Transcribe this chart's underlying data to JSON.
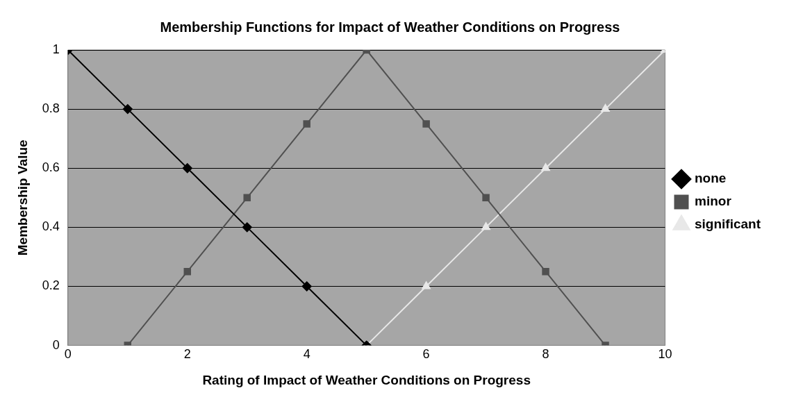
{
  "chart_data": {
    "type": "line",
    "title": "Membership Functions for Impact of Weather Conditions on Progress",
    "xlabel": "Rating of Impact of Weather Conditions on Progress",
    "ylabel": "Membership Value",
    "series": [
      {
        "name": "none",
        "color": "#000000",
        "marker": "diamond",
        "x": [
          0,
          1,
          2,
          3,
          4,
          5
        ],
        "values": [
          1,
          0.8,
          0.6,
          0.4,
          0.2,
          0
        ]
      },
      {
        "name": "minor",
        "color": "#505050",
        "marker": "square",
        "x": [
          1,
          2,
          3,
          4,
          5,
          6,
          7,
          8,
          9
        ],
        "values": [
          0,
          0.25,
          0.5,
          0.75,
          1,
          0.75,
          0.5,
          0.25,
          0
        ]
      },
      {
        "name": "significant",
        "color": "#e8e8e8",
        "marker": "triangle",
        "x": [
          5,
          6,
          7,
          8,
          9,
          10
        ],
        "values": [
          0,
          0.2,
          0.4,
          0.6,
          0.8,
          1
        ]
      }
    ],
    "xlim": [
      0,
      10
    ],
    "xticks": [
      0,
      2,
      4,
      6,
      8,
      10
    ],
    "ylim": [
      0,
      1
    ],
    "yticks": [
      0,
      0.2,
      0.4,
      0.6,
      0.8,
      1
    ],
    "grid": "y",
    "legend": "right",
    "line_style": "solid"
  }
}
